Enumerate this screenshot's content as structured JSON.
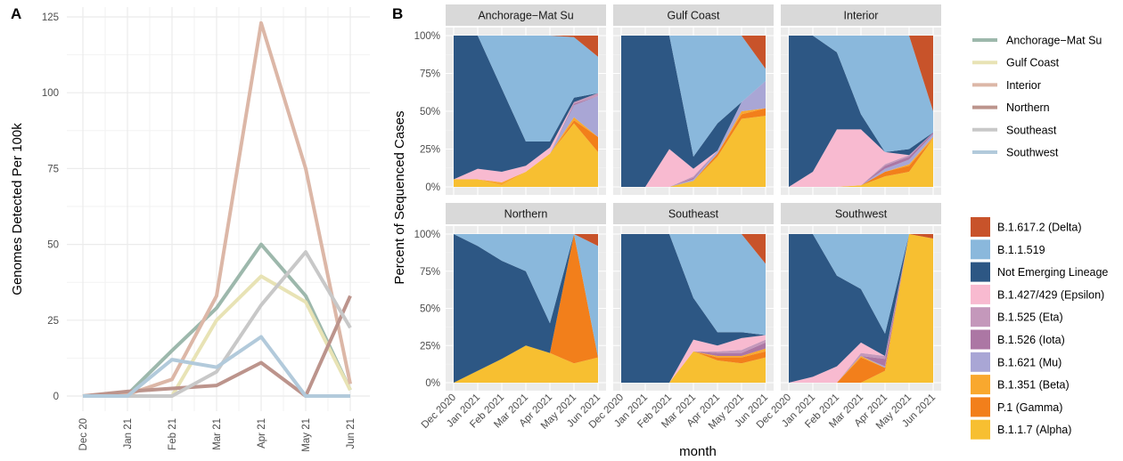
{
  "panel_a_label": "A",
  "panel_b_label": "B",
  "chart_data": [
    {
      "type": "line",
      "panel": "A",
      "ylabel": "Genomes Detected Per 100k",
      "xlabel": "",
      "x": [
        "Dec 20",
        "Jan 21",
        "Feb 21",
        "Mar 21",
        "Apr 21",
        "May 21",
        "Jun 21"
      ],
      "ylim": [
        0,
        125
      ],
      "yticks": [
        0,
        25,
        50,
        75,
        100,
        125
      ],
      "grid": true,
      "legend": "right",
      "series": [
        {
          "name": "Anchorage−Mat Su",
          "color": "#9db8ac",
          "values": [
            0,
            0.5,
            15,
            29,
            50,
            33,
            2
          ]
        },
        {
          "name": "Gulf Coast",
          "color": "#e8e3b5",
          "values": [
            0,
            0,
            0,
            25,
            39.5,
            31,
            2
          ]
        },
        {
          "name": "Interior",
          "color": "#dcb7a7",
          "values": [
            0,
            0.5,
            5.5,
            33,
            123,
            75,
            4
          ]
        },
        {
          "name": "Northern",
          "color": "#bc948c",
          "values": [
            0,
            1.5,
            2.5,
            3.5,
            11,
            0,
            33
          ]
        },
        {
          "name": "Southeast",
          "color": "#c8c8c8",
          "values": [
            0,
            0,
            0,
            8,
            30,
            47.5,
            22.5
          ]
        },
        {
          "name": "Southwest",
          "color": "#b2cadb",
          "values": [
            0,
            0,
            12,
            9.5,
            19.5,
            0,
            0
          ]
        }
      ]
    },
    {
      "type": "area",
      "panel": "B",
      "ylabel": "Percent of Sequenced Cases",
      "xlabel": "month",
      "x": [
        "Dec 2020",
        "Jan 2021",
        "Feb 2021",
        "Mar 2021",
        "Apr 2021",
        "May 2021",
        "Jun 2021"
      ],
      "yticks": [
        "0%",
        "25%",
        "50%",
        "75%",
        "100%"
      ],
      "ylim": [
        0,
        1
      ],
      "stacked": true,
      "legend": "right",
      "lineages": [
        {
          "name": "B.1.617.2 (Delta)",
          "color": "#c8532a"
        },
        {
          "name": "B.1.1.519",
          "color": "#8ab8dc"
        },
        {
          "name": "Not Emerging Lineage",
          "color": "#2d5784"
        },
        {
          "name": "B.1.427/429 (Epsilon)",
          "color": "#f8bad0"
        },
        {
          "name": "B.1.525 (Eta)",
          "color": "#c498bb"
        },
        {
          "name": "B.1.526 (Iota)",
          "color": "#ac77a4"
        },
        {
          "name": "B.1.621 (Mu)",
          "color": "#a9a6d5"
        },
        {
          "name": "B.1.351 (Beta)",
          "color": "#f9a82e"
        },
        {
          "name": "P.1 (Gamma)",
          "color": "#f27f1b"
        },
        {
          "name": "B.1.1.7 (Alpha)",
          "color": "#f7bf31"
        }
      ],
      "facets": [
        {
          "name": "Anchorage−Mat Su",
          "stack": {
            "B.1.1.7 (Alpha)": [
              0.05,
              0.05,
              0.01,
              0.1,
              0.22,
              0.42,
              0.23
            ],
            "P.1 (Gamma)": [
              0,
              0,
              0,
              0,
              0,
              0.02,
              0.1
            ],
            "B.1.351 (Beta)": [
              0,
              0,
              0.02,
              0,
              0,
              0.02,
              0
            ],
            "B.1.621 (Mu)": [
              0,
              0,
              0,
              0,
              0,
              0.08,
              0.27
            ],
            "B.1.526 (Iota)": [
              0,
              0,
              0,
              0,
              0,
              0.01,
              0
            ],
            "B.1.525 (Eta)": [
              0,
              0,
              0,
              0,
              0,
              0.01,
              0.02
            ],
            "B.1.427/429 (Epsilon)": [
              0,
              0.07,
              0.07,
              0.04,
              0.04,
              0,
              0
            ],
            "Not Emerging Lineage": [
              0.95,
              0.88,
              0.55,
              0.16,
              0.04,
              0.03,
              0
            ],
            "B.1.1.519": [
              0,
              0,
              0.35,
              0.7,
              0.7,
              0.4,
              0.24
            ],
            "B.1.617.2 (Delta)": [
              0,
              0,
              0,
              0,
              0,
              0.01,
              0.14
            ]
          }
        },
        {
          "name": "Gulf Coast",
          "stack": {
            "B.1.1.7 (Alpha)": [
              0,
              0,
              0,
              0.04,
              0.2,
              0.45,
              0.47
            ],
            "P.1 (Gamma)": [
              0,
              0,
              0,
              0,
              0.02,
              0.03,
              0.05
            ],
            "B.1.351 (Beta)": [
              0,
              0,
              0,
              0,
              0,
              0.02,
              0
            ],
            "B.1.621 (Mu)": [
              0,
              0,
              0,
              0.01,
              0.02,
              0.06,
              0.18
            ],
            "B.1.526 (Iota)": [
              0,
              0,
              0,
              0.01,
              0,
              0,
              0
            ],
            "B.1.525 (Eta)": [
              0,
              0,
              0,
              0.01,
              0,
              0,
              0
            ],
            "B.1.427/429 (Epsilon)": [
              0,
              0,
              0.25,
              0.05,
              0,
              0,
              0
            ],
            "Not Emerging Lineage": [
              1,
              1,
              0.75,
              0.08,
              0.18,
              0,
              0
            ],
            "B.1.1.519": [
              0,
              0,
              0,
              0.8,
              0.58,
              0.44,
              0.08
            ],
            "B.1.617.2 (Delta)": [
              0,
              0,
              0,
              0,
              0,
              0,
              0.22
            ]
          }
        },
        {
          "name": "Interior",
          "stack": {
            "B.1.1.7 (Alpha)": [
              0,
              0,
              0,
              0.01,
              0.07,
              0.1,
              0.32
            ],
            "P.1 (Gamma)": [
              0,
              0,
              0,
              0,
              0.03,
              0.04,
              0
            ],
            "B.1.351 (Beta)": [
              0,
              0,
              0,
              0,
              0,
              0.01,
              0.01
            ],
            "B.1.621 (Mu)": [
              0,
              0,
              0,
              0,
              0.02,
              0.03,
              0.02
            ],
            "B.1.526 (Iota)": [
              0,
              0,
              0,
              0,
              0.02,
              0.02,
              0.01
            ],
            "B.1.525 (Eta)": [
              0,
              0,
              0,
              0,
              0.01,
              0.01,
              0
            ],
            "B.1.427/429 (Epsilon)": [
              0,
              0.1,
              0.38,
              0.37,
              0.08,
              0,
              0
            ],
            "Not Emerging Lineage": [
              1,
              0.9,
              0.51,
              0.1,
              0,
              0.04,
              0
            ],
            "B.1.1.519": [
              0,
              0,
              0.11,
              0.52,
              0.77,
              0.75,
              0.14
            ],
            "B.1.617.2 (Delta)": [
              0,
              0,
              0,
              0,
              0,
              0,
              0.5
            ]
          }
        },
        {
          "name": "Northern",
          "stack": {
            "B.1.1.7 (Alpha)": [
              0,
              0.08,
              0.16,
              0.25,
              0.2,
              0.13,
              0.17
            ],
            "P.1 (Gamma)": [
              0,
              0,
              0,
              0,
              0,
              0.87,
              0
            ],
            "B.1.351 (Beta)": [
              0,
              0,
              0,
              0,
              0,
              0,
              0
            ],
            "B.1.621 (Mu)": [
              0,
              0,
              0,
              0,
              0,
              0,
              0
            ],
            "B.1.526 (Iota)": [
              0,
              0,
              0,
              0,
              0,
              0,
              0
            ],
            "B.1.525 (Eta)": [
              0,
              0,
              0,
              0,
              0,
              0,
              0
            ],
            "B.1.427/429 (Epsilon)": [
              0,
              0,
              0,
              0,
              0,
              0,
              0
            ],
            "Not Emerging Lineage": [
              1,
              0.84,
              0.66,
              0.5,
              0.2,
              0,
              0
            ],
            "B.1.1.519": [
              0,
              0.08,
              0.18,
              0.25,
              0.6,
              0,
              0.75
            ],
            "B.1.617.2 (Delta)": [
              0,
              0,
              0,
              0,
              0,
              0,
              0.08
            ]
          }
        },
        {
          "name": "Southeast",
          "stack": {
            "B.1.1.7 (Alpha)": [
              0,
              0,
              0,
              0.21,
              0.15,
              0.13,
              0.17
            ],
            "P.1 (Gamma)": [
              0,
              0,
              0,
              0,
              0.02,
              0.04,
              0.04
            ],
            "B.1.351 (Beta)": [
              0,
              0,
              0,
              0,
              0.01,
              0.01,
              0.02
            ],
            "B.1.621 (Mu)": [
              0,
              0,
              0,
              0,
              0,
              0,
              0
            ],
            "B.1.526 (Iota)": [
              0,
              0,
              0,
              0,
              0.02,
              0.02,
              0.04
            ],
            "B.1.525 (Eta)": [
              0,
              0,
              0,
              0,
              0.01,
              0.02,
              0.02
            ],
            "B.1.427/429 (Epsilon)": [
              0,
              0,
              0,
              0.08,
              0.04,
              0.08,
              0.03
            ],
            "Not Emerging Lineage": [
              1,
              1,
              1,
              0.28,
              0.09,
              0.04,
              0
            ],
            "B.1.1.519": [
              0,
              0,
              0,
              0.43,
              0.66,
              0.66,
              0.48
            ],
            "B.1.617.2 (Delta)": [
              0,
              0,
              0,
              0,
              0,
              0,
              0.2
            ]
          }
        },
        {
          "name": "Southwest",
          "stack": {
            "B.1.1.7 (Alpha)": [
              0,
              0,
              0,
              0,
              0.08,
              1.0,
              0.97
            ],
            "P.1 (Gamma)": [
              0,
              0,
              0,
              0.17,
              0.02,
              0,
              0
            ],
            "B.1.351 (Beta)": [
              0,
              0,
              0,
              0.01,
              0,
              0,
              0
            ],
            "B.1.621 (Mu)": [
              0,
              0,
              0,
              0,
              0.01,
              0,
              0
            ],
            "B.1.526 (Iota)": [
              0,
              0,
              0,
              0,
              0.05,
              0,
              0
            ],
            "B.1.525 (Eta)": [
              0,
              0,
              0,
              0.02,
              0.02,
              0,
              0
            ],
            "B.1.427/429 (Epsilon)": [
              0,
              0.04,
              0.11,
              0.07,
              0,
              0,
              0
            ],
            "Not Emerging Lineage": [
              1,
              0.96,
              0.61,
              0.36,
              0.15,
              0,
              0
            ],
            "B.1.1.519": [
              0,
              0,
              0.28,
              0.37,
              0.67,
              0,
              0
            ],
            "B.1.617.2 (Delta)": [
              0,
              0,
              0,
              0,
              0,
              0,
              0.03
            ]
          }
        }
      ]
    }
  ]
}
